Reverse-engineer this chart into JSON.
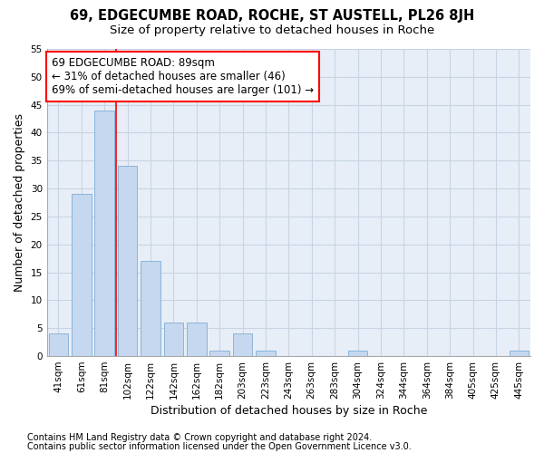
{
  "title1": "69, EDGECUMBE ROAD, ROCHE, ST AUSTELL, PL26 8JH",
  "title2": "Size of property relative to detached houses in Roche",
  "xlabel": "Distribution of detached houses by size in Roche",
  "ylabel": "Number of detached properties",
  "bar_labels": [
    "41sqm",
    "61sqm",
    "81sqm",
    "102sqm",
    "122sqm",
    "142sqm",
    "162sqm",
    "182sqm",
    "203sqm",
    "223sqm",
    "243sqm",
    "263sqm",
    "283sqm",
    "304sqm",
    "324sqm",
    "344sqm",
    "364sqm",
    "384sqm",
    "405sqm",
    "425sqm",
    "445sqm"
  ],
  "bar_values": [
    4,
    29,
    44,
    34,
    17,
    6,
    6,
    1,
    4,
    1,
    0,
    0,
    0,
    1,
    0,
    0,
    0,
    0,
    0,
    0,
    1
  ],
  "bar_color": "#c5d8ef",
  "bar_edge_color": "#8ab4d8",
  "grid_color": "#c8d4e4",
  "bg_color": "#e8eef8",
  "annotation_line1": "69 EDGECUMBE ROAD: 89sqm",
  "annotation_line2": "← 31% of detached houses are smaller (46)",
  "annotation_line3": "69% of semi-detached houses are larger (101) →",
  "redline_x": 2.5,
  "ylim": [
    0,
    55
  ],
  "yticks": [
    0,
    5,
    10,
    15,
    20,
    25,
    30,
    35,
    40,
    45,
    50,
    55
  ],
  "footer1": "Contains HM Land Registry data © Crown copyright and database right 2024.",
  "footer2": "Contains public sector information licensed under the Open Government Licence v3.0.",
  "title1_fontsize": 10.5,
  "title2_fontsize": 9.5,
  "annotation_fontsize": 8.5,
  "axis_label_fontsize": 9,
  "tick_fontsize": 7.5,
  "footer_fontsize": 7
}
